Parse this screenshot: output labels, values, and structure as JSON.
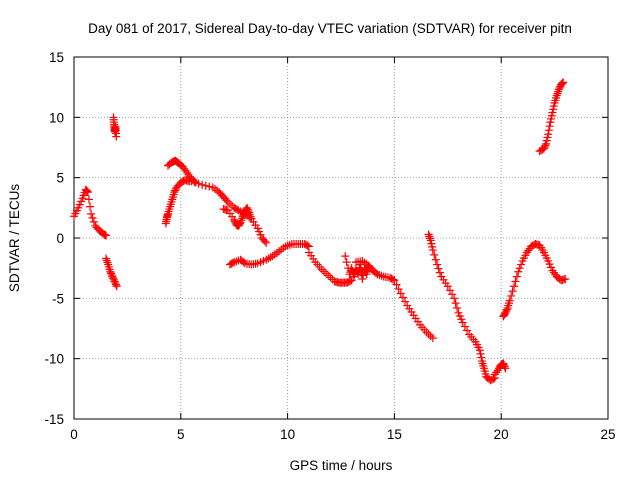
{
  "chart_data": {
    "type": "scatter",
    "title": "Day 081 of 2017, Sidereal Day-to-day VTEC variation (SDTVAR) for receiver pitn",
    "xlabel": "GPS time / hours",
    "ylabel": "SDTVAR / TECUs",
    "xlim": [
      0,
      25
    ],
    "ylim": [
      -15,
      15
    ],
    "xticks": [
      0,
      5,
      10,
      15,
      20,
      25
    ],
    "yticks": [
      -15,
      -10,
      -5,
      0,
      5,
      10,
      15
    ],
    "grid": true,
    "marker": "+",
    "color": "#ff0000",
    "segments": [
      {
        "name": "seg1",
        "x": [
          0.0,
          0.2,
          0.4,
          0.55,
          0.65,
          0.8,
          1.0,
          1.2,
          1.4,
          1.5
        ],
        "y": [
          1.8,
          2.5,
          3.3,
          4.0,
          3.8,
          2.0,
          1.0,
          0.6,
          0.3,
          0.2
        ]
      },
      {
        "name": "seg2",
        "x": [
          1.5,
          1.6,
          1.7,
          1.8,
          1.9,
          2.0
        ],
        "y": [
          -1.7,
          -2.2,
          -2.8,
          -3.2,
          -3.6,
          -4.0
        ]
      },
      {
        "name": "seg3",
        "x": [
          1.85,
          1.88,
          1.9,
          1.92,
          1.95,
          1.98
        ],
        "y": [
          10.0,
          9.4,
          9.0,
          8.8,
          9.2,
          8.4
        ]
      },
      {
        "name": "seg4",
        "x": [
          4.3,
          4.35,
          4.4,
          4.5,
          4.6,
          4.7,
          4.8,
          5.0,
          5.2,
          5.4
        ],
        "y": [
          1.2,
          1.7,
          2.0,
          2.6,
          3.2,
          3.8,
          4.2,
          4.6,
          4.8,
          4.7
        ]
      },
      {
        "name": "seg5",
        "x": [
          4.4,
          4.6,
          4.75,
          4.9,
          5.1,
          5.3,
          5.5,
          5.7
        ],
        "y": [
          6.0,
          6.3,
          6.4,
          6.2,
          5.9,
          5.4,
          4.9,
          4.6
        ]
      },
      {
        "name": "seg6",
        "x": [
          5.5,
          6.0,
          6.5,
          6.8,
          7.0,
          7.2,
          7.5,
          7.7,
          8.0,
          8.3,
          8.6,
          8.8,
          9.0
        ],
        "y": [
          4.7,
          4.4,
          4.2,
          3.8,
          3.4,
          3.0,
          2.5,
          2.3,
          2.0,
          1.6,
          0.8,
          0.0,
          -0.4
        ]
      },
      {
        "name": "seg7",
        "x": [
          7.0,
          7.2,
          7.5,
          7.6,
          7.7,
          7.8,
          7.9,
          8.0,
          8.1,
          8.2,
          8.3
        ],
        "y": [
          2.4,
          2.3,
          1.5,
          1.1,
          1.0,
          1.3,
          1.8,
          2.2,
          2.5,
          2.1,
          1.6
        ]
      },
      {
        "name": "seg8",
        "x": [
          7.3,
          7.5,
          7.8,
          8.0,
          8.3,
          8.6,
          9.0,
          9.3,
          9.6,
          9.9,
          10.2,
          10.5,
          10.8,
          11.0
        ],
        "y": [
          -2.2,
          -2.0,
          -1.8,
          -2.1,
          -2.2,
          -2.1,
          -1.8,
          -1.5,
          -1.1,
          -0.7,
          -0.5,
          -0.5,
          -0.5,
          -0.7
        ]
      },
      {
        "name": "seg9",
        "x": [
          11.0,
          11.3,
          11.6,
          11.9,
          12.2,
          12.4,
          12.6,
          12.8,
          13.0
        ],
        "y": [
          -1.2,
          -2.0,
          -2.6,
          -3.1,
          -3.6,
          -3.7,
          -3.7,
          -3.7,
          -3.5
        ]
      },
      {
        "name": "seg10",
        "x": [
          12.7,
          12.9,
          13.0,
          13.1,
          13.2,
          13.3,
          13.4,
          13.5,
          13.6,
          13.7,
          13.8
        ],
        "y": [
          -1.5,
          -3.0,
          -2.5,
          -3.2,
          -2.6,
          -3.0,
          -2.2,
          -3.4,
          -2.5,
          -3.0,
          -2.3
        ]
      },
      {
        "name": "seg11",
        "x": [
          13.2,
          13.5,
          13.8,
          14.0,
          14.2,
          14.5,
          14.8,
          15.0,
          15.3,
          15.6,
          15.9,
          16.2,
          16.5,
          16.8
        ],
        "y": [
          -2.0,
          -1.9,
          -2.3,
          -2.7,
          -3.0,
          -3.2,
          -3.3,
          -3.5,
          -4.6,
          -5.6,
          -6.4,
          -7.2,
          -7.8,
          -8.3
        ]
      },
      {
        "name": "seg12",
        "x": [
          16.6,
          16.7,
          16.8,
          17.0,
          17.2,
          17.5,
          17.8,
          18.0,
          18.2,
          18.5,
          18.8,
          19.0,
          19.1,
          19.2,
          19.3,
          19.5,
          19.7
        ],
        "y": [
          0.3,
          -0.2,
          -1.0,
          -2.2,
          -3.2,
          -4.0,
          -5.0,
          -6.2,
          -7.0,
          -8.0,
          -8.6,
          -9.3,
          -10.2,
          -10.8,
          -11.5,
          -11.8,
          -11.6
        ]
      },
      {
        "name": "seg13",
        "x": [
          19.7,
          19.9,
          20.0,
          20.1,
          20.2
        ],
        "y": [
          -11.3,
          -10.8,
          -10.5,
          -10.4,
          -10.8
        ]
      },
      {
        "name": "seg14",
        "x": [
          20.1,
          20.2,
          20.3,
          20.4,
          20.6,
          20.8,
          21.0,
          21.2,
          21.4,
          21.6,
          21.8,
          22.0,
          22.2,
          22.4,
          22.6,
          22.8,
          23.0
        ],
        "y": [
          -6.5,
          -6.2,
          -5.8,
          -5.2,
          -4.0,
          -2.8,
          -1.9,
          -1.2,
          -0.7,
          -0.5,
          -0.6,
          -1.2,
          -1.9,
          -2.7,
          -3.2,
          -3.5,
          -3.4
        ]
      },
      {
        "name": "seg15",
        "x": [
          21.8,
          22.0,
          22.1,
          22.2,
          22.3,
          22.4,
          22.5,
          22.6,
          22.7,
          22.8,
          22.9
        ],
        "y": [
          7.2,
          7.4,
          7.8,
          8.6,
          9.6,
          10.4,
          11.2,
          11.8,
          12.3,
          12.7,
          12.9
        ]
      }
    ]
  }
}
